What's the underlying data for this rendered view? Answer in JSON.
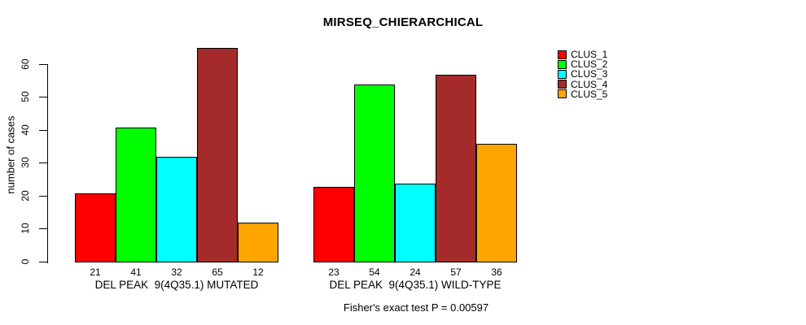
{
  "chart_data": {
    "type": "bar",
    "title": "MIRSEQ_CHIERARCHICAL",
    "ylabel": "number of cases",
    "xlabel": "",
    "annotation": "Fisher's exact test P = 0.00597",
    "ylim": [
      0,
      60
    ],
    "yticks": [
      0,
      10,
      20,
      30,
      40,
      50,
      60
    ],
    "grid": false,
    "legend_position": "right-outside",
    "background_color": "#ffffff",
    "bar_border_color": "#000000",
    "series": [
      {
        "name": "CLUS_1",
        "color": "#ff0000"
      },
      {
        "name": "CLUS_2",
        "color": "#00ff00"
      },
      {
        "name": "CLUS_3",
        "color": "#00ffff"
      },
      {
        "name": "CLUS_4",
        "color": "#a52a2a"
      },
      {
        "name": "CLUS_5",
        "color": "#ffa500"
      }
    ],
    "groups": [
      {
        "label": "DEL PEAK  9(4Q35.1) MUTATED",
        "values": [
          21,
          41,
          32,
          65,
          12
        ],
        "value_labels": [
          "21",
          "41",
          "32",
          "65",
          "12"
        ]
      },
      {
        "label": "DEL PEAK  9(4Q35.1) WILD-TYPE",
        "values": [
          23,
          54,
          24,
          57,
          36
        ],
        "value_labels": [
          "23",
          "54",
          "24",
          "57",
          "36"
        ]
      }
    ]
  }
}
